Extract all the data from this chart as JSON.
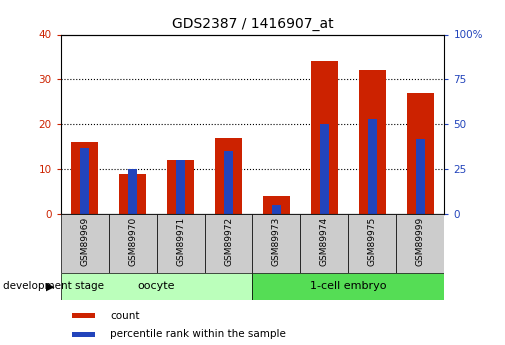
{
  "title": "GDS2387 / 1416907_at",
  "samples": [
    "GSM89969",
    "GSM89970",
    "GSM89971",
    "GSM89972",
    "GSM89973",
    "GSM89974",
    "GSM89975",
    "GSM89999"
  ],
  "counts": [
    16,
    9,
    12,
    17,
    4,
    34,
    32,
    27
  ],
  "percentiles": [
    37,
    25,
    30,
    35,
    5,
    50,
    53,
    42
  ],
  "oocyte_indices": [
    0,
    1,
    2,
    3
  ],
  "embryo_indices": [
    4,
    5,
    6,
    7
  ],
  "oocyte_label": "oocyte",
  "embryo_label": "1-cell embryo",
  "dev_stage_label": "development stage",
  "left_ylim": [
    0,
    40
  ],
  "right_ylim": [
    0,
    100
  ],
  "left_yticks": [
    0,
    10,
    20,
    30,
    40
  ],
  "right_yticks": [
    0,
    25,
    50,
    75,
    100
  ],
  "left_yticklabels": [
    "0",
    "10",
    "20",
    "30",
    "40"
  ],
  "right_yticklabels": [
    "0",
    "25",
    "50",
    "75",
    "100%"
  ],
  "red_color": "#CC2200",
  "blue_color": "#2244BB",
  "oocyte_bg": "#BBFFBB",
  "embryo_bg": "#55DD55",
  "sample_bg": "#CCCCCC",
  "grid_color": "#000000",
  "legend_count": "count",
  "legend_pct": "percentile rank within the sample",
  "title_fontsize": 10,
  "tick_fontsize": 7.5,
  "label_fontsize": 7.5
}
